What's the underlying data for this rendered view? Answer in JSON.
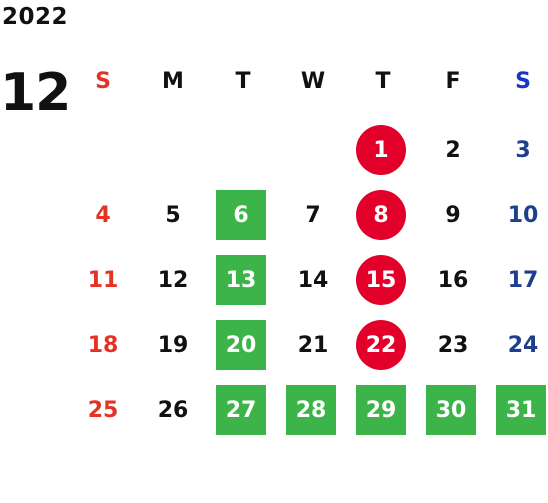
{
  "year": "2022",
  "month": "12",
  "weekdays": [
    "S",
    "M",
    "T",
    "W",
    "T",
    "F",
    "S"
  ],
  "weeks": [
    [
      "",
      "",
      "",
      "",
      "1",
      "2",
      "3"
    ],
    [
      "4",
      "5",
      "6",
      "7",
      "8",
      "9",
      "10"
    ],
    [
      "11",
      "12",
      "13",
      "14",
      "15",
      "16",
      "17"
    ],
    [
      "18",
      "19",
      "20",
      "21",
      "22",
      "23",
      "24"
    ],
    [
      "25",
      "26",
      "27",
      "28",
      "29",
      "30",
      "31"
    ]
  ],
  "colors": {
    "sunday_text": "#e53323",
    "saturday_text": "#1e3f8c",
    "saturday_header": "#1a34c4",
    "highlight_green": "#3cb44a",
    "highlight_red": "#e2002b"
  },
  "highlighted_green_days": [
    "6",
    "13",
    "20",
    "27",
    "28",
    "29",
    "30",
    "31"
  ],
  "highlighted_red_days": [
    "1",
    "8",
    "15",
    "22"
  ]
}
